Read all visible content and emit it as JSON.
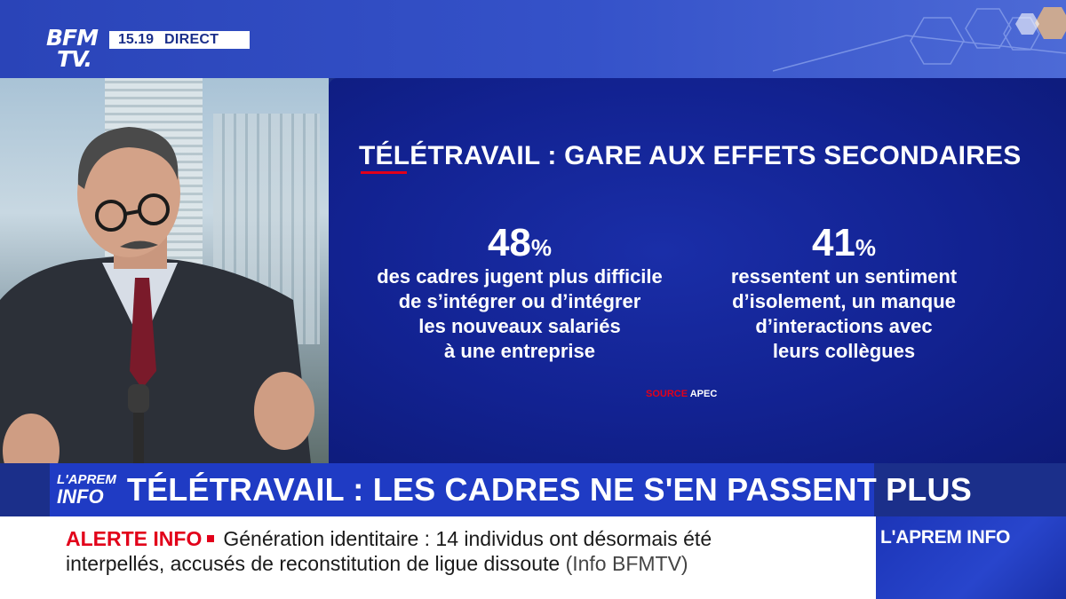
{
  "channel": {
    "logo_line1": "BFM",
    "logo_line2": "TV.",
    "time": "15.19",
    "live_label": "DIRECT"
  },
  "infographic": {
    "title": "TÉLÉTRAVAIL : GARE AUX EFFETS SECONDAIRES",
    "stats": [
      {
        "number": "48",
        "unit": "%",
        "lines": [
          "des cadres jugent plus difficile",
          "de s’intégrer ou d’intégrer",
          "les nouveaux salariés",
          "à une entreprise"
        ]
      },
      {
        "number": "41",
        "unit": "%",
        "lines": [
          "ressentent un sentiment",
          "d’isolement, un manque",
          "d’interactions avec",
          "leurs collègues"
        ]
      }
    ],
    "source_label": "SOURCE",
    "source_name": "APEC"
  },
  "headline": {
    "show_logo_line1": "L'APREM",
    "show_logo_line2": "INFO",
    "text": "TÉLÉTRAVAIL : LES CADRES NE S'EN PASSENT PLUS"
  },
  "ticker": {
    "alert_label": "ALERTE INFO",
    "line1": "Génération identitaire : 14 individus ont désormais été",
    "line2": "interpellés, accusés de reconstitution de ligue dissoute",
    "source": "(Info BFMTV)"
  },
  "side_brand": {
    "text": "L'APREM INFO"
  },
  "colors": {
    "brand_blue": "#1f3bc4",
    "panel_blue": "#122291",
    "alert_red": "#e2001a"
  }
}
